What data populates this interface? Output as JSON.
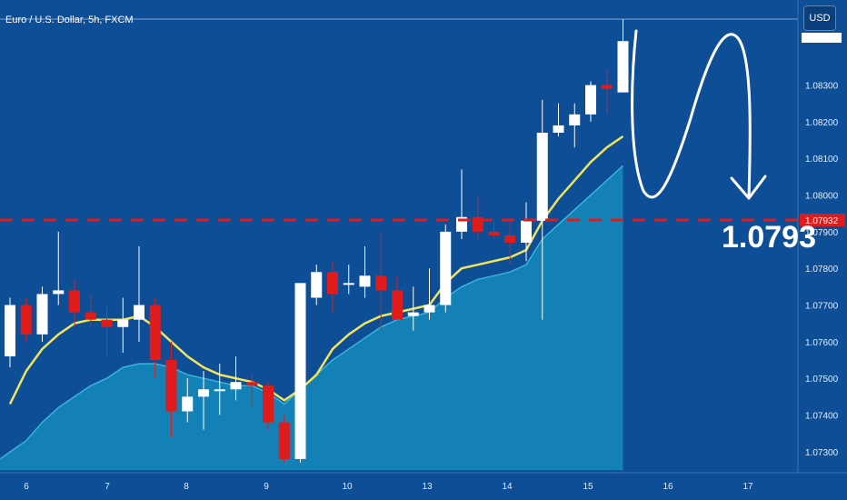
{
  "header": {
    "symbol_title": "Euro / U.S. Dollar, 5h, FXCM"
  },
  "currency_button": {
    "label": "USD"
  },
  "annotation": {
    "target_price": "1.0793"
  },
  "colors": {
    "background": "#0d4e97",
    "bull_candle": "#ffffff",
    "bear_candle": "#e01b1b",
    "ma_line": "#f2e55a",
    "area_fill": "#1593c0",
    "area_edge": "#3bb4d8",
    "level_line": "#e01b1b"
  },
  "chart_data": {
    "type": "candlestick",
    "title": "Euro / U.S. Dollar, 5h, FXCM",
    "x_tick_labels": [
      "6",
      "7",
      "8",
      "9",
      "10",
      "13",
      "14",
      "15",
      "16",
      "17"
    ],
    "y_tick_labels": [
      "1.08300",
      "1.08200",
      "1.08100",
      "1.08000",
      "1.07900",
      "1.07800",
      "1.07700",
      "1.07600",
      "1.07500",
      "1.07400",
      "1.07300"
    ],
    "ylim": [
      1.0725,
      1.0848
    ],
    "grid": false,
    "last_price": 1.0842,
    "horizontal_level": {
      "value": 1.07932,
      "label": "1.07932",
      "style": "dashed"
    },
    "candles": [
      {
        "o": 1.0756,
        "h": 1.0772,
        "l": 1.0753,
        "c": 1.077
      },
      {
        "o": 1.077,
        "h": 1.0772,
        "l": 1.076,
        "c": 1.0762
      },
      {
        "o": 1.0762,
        "h": 1.0775,
        "l": 1.076,
        "c": 1.0773
      },
      {
        "o": 1.0773,
        "h": 1.079,
        "l": 1.077,
        "c": 1.0774
      },
      {
        "o": 1.0774,
        "h": 1.0777,
        "l": 1.0764,
        "c": 1.0768
      },
      {
        "o": 1.0768,
        "h": 1.0773,
        "l": 1.0764,
        "c": 1.0766
      },
      {
        "o": 1.0766,
        "h": 1.077,
        "l": 1.0756,
        "c": 1.0764
      },
      {
        "o": 1.0764,
        "h": 1.0772,
        "l": 1.0757,
        "c": 1.0766
      },
      {
        "o": 1.0766,
        "h": 1.0786,
        "l": 1.076,
        "c": 1.077
      },
      {
        "o": 1.077,
        "h": 1.0772,
        "l": 1.075,
        "c": 1.0755
      },
      {
        "o": 1.0755,
        "h": 1.076,
        "l": 1.0734,
        "c": 1.0741
      },
      {
        "o": 1.0741,
        "h": 1.075,
        "l": 1.0738,
        "c": 1.0745
      },
      {
        "o": 1.0745,
        "h": 1.0752,
        "l": 1.0736,
        "c": 1.0747
      },
      {
        "o": 1.0747,
        "h": 1.0754,
        "l": 1.074,
        "c": 1.0747
      },
      {
        "o": 1.0747,
        "h": 1.0756,
        "l": 1.0744,
        "c": 1.0749
      },
      {
        "o": 1.0749,
        "h": 1.0751,
        "l": 1.0742,
        "c": 1.0748
      },
      {
        "o": 1.0748,
        "h": 1.0749,
        "l": 1.0736,
        "c": 1.0738
      },
      {
        "o": 1.0738,
        "h": 1.074,
        "l": 1.0727,
        "c": 1.0728
      },
      {
        "o": 1.0728,
        "h": 1.0776,
        "l": 1.0727,
        "c": 1.0776
      },
      {
        "o": 1.0772,
        "h": 1.0781,
        "l": 1.077,
        "c": 1.0779
      },
      {
        "o": 1.0779,
        "h": 1.0782,
        "l": 1.0768,
        "c": 1.0773
      },
      {
        "o": 1.0776,
        "h": 1.0781,
        "l": 1.0773,
        "c": 1.0776
      },
      {
        "o": 1.0775,
        "h": 1.0786,
        "l": 1.0772,
        "c": 1.0778
      },
      {
        "o": 1.0778,
        "h": 1.079,
        "l": 1.0763,
        "c": 1.0774
      },
      {
        "o": 1.0774,
        "h": 1.0778,
        "l": 1.0766,
        "c": 1.0766
      },
      {
        "o": 1.0767,
        "h": 1.0775,
        "l": 1.0763,
        "c": 1.0768
      },
      {
        "o": 1.0768,
        "h": 1.078,
        "l": 1.0766,
        "c": 1.077
      },
      {
        "o": 1.077,
        "h": 1.0792,
        "l": 1.0768,
        "c": 1.079
      },
      {
        "o": 1.079,
        "h": 1.0807,
        "l": 1.0788,
        "c": 1.0794
      },
      {
        "o": 1.0794,
        "h": 1.08,
        "l": 1.0788,
        "c": 1.079
      },
      {
        "o": 1.079,
        "h": 1.0793,
        "l": 1.0788,
        "c": 1.0789
      },
      {
        "o": 1.0789,
        "h": 1.0793,
        "l": 1.0781,
        "c": 1.0787
      },
      {
        "o": 1.0787,
        "h": 1.0798,
        "l": 1.0782,
        "c": 1.0793
      },
      {
        "o": 1.0793,
        "h": 1.0826,
        "l": 1.0766,
        "c": 1.0817
      },
      {
        "o": 1.0817,
        "h": 1.0825,
        "l": 1.0816,
        "c": 1.0819
      },
      {
        "o": 1.0819,
        "h": 1.0825,
        "l": 1.0813,
        "c": 1.0822
      },
      {
        "o": 1.0822,
        "h": 1.0831,
        "l": 1.082,
        "c": 1.083
      },
      {
        "o": 1.083,
        "h": 1.0834,
        "l": 1.0822,
        "c": 1.0829
      },
      {
        "o": 1.0828,
        "h": 1.0848,
        "l": 1.0828,
        "c": 1.0842
      }
    ],
    "moving_average": [
      1.0743,
      1.0752,
      1.0758,
      1.0762,
      1.0765,
      1.0766,
      1.0766,
      1.0766,
      1.0767,
      1.0764,
      1.076,
      1.0756,
      1.0753,
      1.0751,
      1.075,
      1.0749,
      1.0747,
      1.0744,
      1.0747,
      1.0751,
      1.0758,
      1.0762,
      1.0765,
      1.0767,
      1.0768,
      1.0769,
      1.077,
      1.0776,
      1.078,
      1.0781,
      1.0782,
      1.0783,
      1.0785,
      1.0793,
      1.0799,
      1.0804,
      1.0809,
      1.0813,
      1.0816
    ],
    "area_values": [
      1.0728,
      1.0733,
      1.0738,
      1.0742,
      1.0745,
      1.0748,
      1.075,
      1.0753,
      1.0754,
      1.0754,
      1.0753,
      1.0751,
      1.075,
      1.0749,
      1.0748,
      1.0748,
      1.0746,
      1.0743,
      1.0747,
      1.0751,
      1.0755,
      1.0758,
      1.0761,
      1.0764,
      1.0766,
      1.0767,
      1.0768,
      1.0772,
      1.0775,
      1.0777,
      1.0778,
      1.0779,
      1.0781,
      1.0788,
      1.0792,
      1.0796,
      1.08,
      1.0804,
      1.0808
    ]
  }
}
